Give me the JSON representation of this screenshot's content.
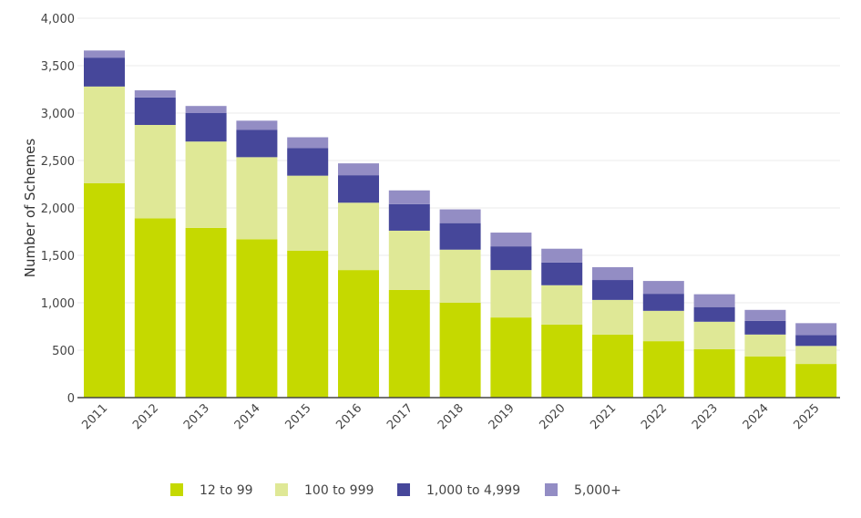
{
  "chart_data": {
    "type": "bar",
    "stacked": true,
    "title": "",
    "xlabel": "",
    "ylabel": "Number of Schemes",
    "ylim": [
      0,
      4000
    ],
    "yticks": [
      0,
      500,
      1000,
      1500,
      2000,
      2500,
      3000,
      3500,
      4000
    ],
    "ytick_labels": [
      "0",
      "500",
      "1,000",
      "1,500",
      "2,000",
      "2,500",
      "3,000",
      "3,500",
      "4,000"
    ],
    "grid": true,
    "legend_position": "bottom",
    "categories": [
      "2011",
      "2012",
      "2013",
      "2014",
      "2015",
      "2016",
      "2017",
      "2018",
      "2019",
      "2020",
      "2021",
      "2022",
      "2023",
      "2024",
      "2025"
    ],
    "series": [
      {
        "name": "12 to 99",
        "color": "#c5d900",
        "values": [
          2260,
          1890,
          1790,
          1670,
          1550,
          1345,
          1135,
          1000,
          845,
          770,
          665,
          595,
          510,
          435,
          355
        ]
      },
      {
        "name": "100 to 999",
        "color": "#dfe896",
        "values": [
          1020,
          985,
          910,
          865,
          790,
          710,
          625,
          560,
          500,
          415,
          365,
          320,
          290,
          230,
          190
        ]
      },
      {
        "name": "1,000 to 4,999",
        "color": "#46479a",
        "values": [
          305,
          290,
          300,
          290,
          290,
          290,
          280,
          280,
          250,
          240,
          210,
          180,
          155,
          145,
          115
        ]
      },
      {
        "name": "5,000+",
        "color": "#938dc4",
        "values": [
          75,
          75,
          75,
          95,
          115,
          125,
          145,
          145,
          145,
          145,
          135,
          135,
          135,
          115,
          125
        ]
      }
    ]
  }
}
